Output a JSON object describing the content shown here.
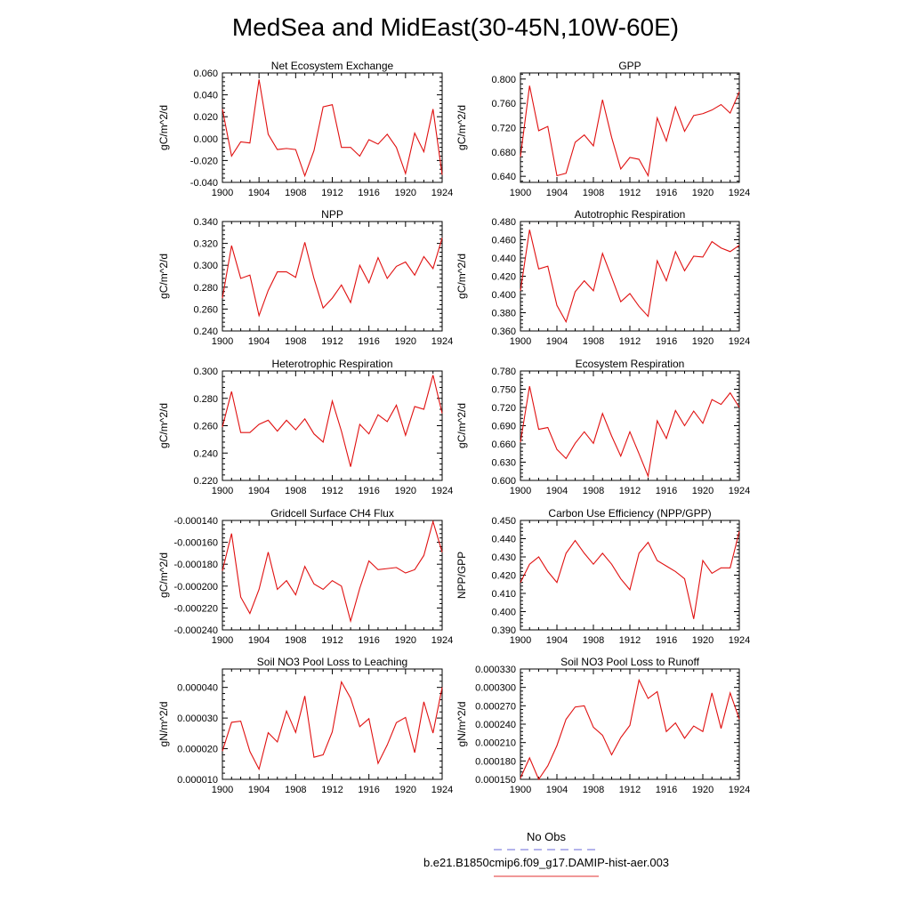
{
  "title": "MedSea and MidEast(30-45N,10W-60E)",
  "legend": {
    "entries": [
      {
        "label": "No Obs",
        "color": "#6a6ad8",
        "dash": true
      },
      {
        "label": "b.e21.B1850cmip6.f09_g17.DAMIP-hist-aer.003",
        "color": "#e03030",
        "dash": false
      }
    ]
  },
  "chart_data": [
    {
      "type": "line",
      "title": "Net Ecosystem Exchange",
      "ylabel": "gC/m^2/d",
      "xlim": [
        1900,
        1924
      ],
      "x_ticks": [
        1900,
        1904,
        1908,
        1912,
        1916,
        1920,
        1924
      ],
      "ylim": [
        -0.04,
        0.06
      ],
      "y_ticks": [
        -0.04,
        -0.02,
        0.0,
        0.02,
        0.04,
        0.06
      ],
      "y_tick_labels": [
        "-0.040",
        "-0.020",
        "0.000",
        "0.020",
        "0.040",
        "0.060"
      ],
      "color": "#e01010",
      "x": [
        1900,
        1901,
        1902,
        1903,
        1904,
        1905,
        1906,
        1907,
        1908,
        1909,
        1910,
        1911,
        1912,
        1913,
        1914,
        1915,
        1916,
        1917,
        1918,
        1919,
        1920,
        1921,
        1922,
        1923,
        1924
      ],
      "values": [
        0.027,
        -0.016,
        -0.003,
        -0.004,
        0.054,
        0.004,
        -0.01,
        -0.009,
        -0.01,
        -0.034,
        -0.011,
        0.029,
        0.031,
        -0.008,
        -0.008,
        -0.016,
        -0.001,
        -0.005,
        0.004,
        -0.008,
        -0.032,
        0.005,
        -0.012,
        0.027,
        -0.033
      ]
    },
    {
      "type": "line",
      "title": "GPP",
      "ylabel": "gC/m^2/d",
      "xlim": [
        1900,
        1924
      ],
      "x_ticks": [
        1900,
        1904,
        1908,
        1912,
        1916,
        1920,
        1924
      ],
      "ylim": [
        0.63,
        0.81
      ],
      "y_ticks": [
        0.64,
        0.68,
        0.72,
        0.76,
        0.8
      ],
      "y_tick_labels": [
        "0.640",
        "0.680",
        "0.720",
        "0.760",
        "0.800"
      ],
      "color": "#e01010",
      "x": [
        1900,
        1901,
        1902,
        1903,
        1904,
        1905,
        1906,
        1907,
        1908,
        1909,
        1910,
        1911,
        1912,
        1913,
        1914,
        1915,
        1916,
        1917,
        1918,
        1919,
        1920,
        1921,
        1922,
        1923,
        1924
      ],
      "values": [
        0.672,
        0.789,
        0.715,
        0.722,
        0.641,
        0.645,
        0.696,
        0.708,
        0.69,
        0.766,
        0.704,
        0.652,
        0.671,
        0.668,
        0.641,
        0.736,
        0.698,
        0.754,
        0.714,
        0.74,
        0.743,
        0.749,
        0.758,
        0.744,
        0.779
      ]
    },
    {
      "type": "line",
      "title": "NPP",
      "ylabel": "gC/m^2/d",
      "xlim": [
        1900,
        1924
      ],
      "x_ticks": [
        1900,
        1904,
        1908,
        1912,
        1916,
        1920,
        1924
      ],
      "ylim": [
        0.24,
        0.34
      ],
      "y_ticks": [
        0.24,
        0.26,
        0.28,
        0.3,
        0.32,
        0.34
      ],
      "y_tick_labels": [
        "0.240",
        "0.260",
        "0.280",
        "0.300",
        "0.320",
        "0.340"
      ],
      "color": "#e01010",
      "x": [
        1900,
        1901,
        1902,
        1903,
        1904,
        1905,
        1906,
        1907,
        1908,
        1909,
        1910,
        1911,
        1912,
        1913,
        1914,
        1915,
        1916,
        1917,
        1918,
        1919,
        1920,
        1921,
        1922,
        1923,
        1924
      ],
      "values": [
        0.27,
        0.318,
        0.288,
        0.291,
        0.254,
        0.277,
        0.294,
        0.294,
        0.289,
        0.321,
        0.288,
        0.261,
        0.27,
        0.282,
        0.266,
        0.3,
        0.284,
        0.307,
        0.288,
        0.299,
        0.303,
        0.291,
        0.308,
        0.297,
        0.325
      ]
    },
    {
      "type": "line",
      "title": "Autotrophic Respiration",
      "ylabel": "gC/m^2/d",
      "xlim": [
        1900,
        1924
      ],
      "x_ticks": [
        1900,
        1904,
        1908,
        1912,
        1916,
        1920,
        1924
      ],
      "ylim": [
        0.36,
        0.48
      ],
      "y_ticks": [
        0.36,
        0.38,
        0.4,
        0.42,
        0.44,
        0.46,
        0.48
      ],
      "y_tick_labels": [
        "0.360",
        "0.380",
        "0.400",
        "0.420",
        "0.440",
        "0.460",
        "0.480"
      ],
      "color": "#e01010",
      "x": [
        1900,
        1901,
        1902,
        1903,
        1904,
        1905,
        1906,
        1907,
        1908,
        1909,
        1910,
        1911,
        1912,
        1913,
        1914,
        1915,
        1916,
        1917,
        1918,
        1919,
        1920,
        1921,
        1922,
        1923,
        1924
      ],
      "values": [
        0.404,
        0.471,
        0.428,
        0.431,
        0.388,
        0.37,
        0.403,
        0.415,
        0.404,
        0.445,
        0.419,
        0.392,
        0.401,
        0.387,
        0.376,
        0.437,
        0.415,
        0.447,
        0.426,
        0.442,
        0.441,
        0.458,
        0.451,
        0.447,
        0.454
      ]
    },
    {
      "type": "line",
      "title": "Heterotrophic Respiration",
      "ylabel": "gC/m^2/d",
      "xlim": [
        1900,
        1924
      ],
      "x_ticks": [
        1900,
        1904,
        1908,
        1912,
        1916,
        1920,
        1924
      ],
      "ylim": [
        0.22,
        0.3
      ],
      "y_ticks": [
        0.22,
        0.24,
        0.26,
        0.28,
        0.3
      ],
      "y_tick_labels": [
        "0.220",
        "0.240",
        "0.260",
        "0.280",
        "0.300"
      ],
      "color": "#e01010",
      "x": [
        1900,
        1901,
        1902,
        1903,
        1904,
        1905,
        1906,
        1907,
        1908,
        1909,
        1910,
        1911,
        1912,
        1913,
        1914,
        1915,
        1916,
        1917,
        1918,
        1919,
        1920,
        1921,
        1922,
        1923,
        1924
      ],
      "values": [
        0.259,
        0.285,
        0.255,
        0.255,
        0.261,
        0.264,
        0.256,
        0.264,
        0.257,
        0.265,
        0.254,
        0.248,
        0.278,
        0.256,
        0.23,
        0.261,
        0.254,
        0.268,
        0.263,
        0.275,
        0.253,
        0.274,
        0.272,
        0.297,
        0.269
      ]
    },
    {
      "type": "line",
      "title": "Ecosystem Respiration",
      "ylabel": "gC/m^2/d",
      "xlim": [
        1900,
        1924
      ],
      "x_ticks": [
        1900,
        1904,
        1908,
        1912,
        1916,
        1920,
        1924
      ],
      "ylim": [
        0.6,
        0.78
      ],
      "y_ticks": [
        0.6,
        0.63,
        0.66,
        0.69,
        0.72,
        0.75,
        0.78
      ],
      "y_tick_labels": [
        "0.600",
        "0.630",
        "0.660",
        "0.690",
        "0.720",
        "0.750",
        "0.780"
      ],
      "color": "#e01010",
      "x": [
        1900,
        1901,
        1902,
        1903,
        1904,
        1905,
        1906,
        1907,
        1908,
        1909,
        1910,
        1911,
        1912,
        1913,
        1914,
        1915,
        1916,
        1917,
        1918,
        1919,
        1920,
        1921,
        1922,
        1923,
        1924
      ],
      "values": [
        0.663,
        0.755,
        0.684,
        0.687,
        0.651,
        0.636,
        0.661,
        0.68,
        0.661,
        0.71,
        0.673,
        0.64,
        0.68,
        0.644,
        0.607,
        0.698,
        0.669,
        0.715,
        0.69,
        0.714,
        0.694,
        0.733,
        0.725,
        0.744,
        0.72
      ]
    },
    {
      "type": "line",
      "title": "Gridcell Surface CH4 Flux",
      "ylabel": "gC/m^2/d",
      "xlim": [
        1900,
        1924
      ],
      "x_ticks": [
        1900,
        1904,
        1908,
        1912,
        1916,
        1920,
        1924
      ],
      "ylim": [
        -0.00024,
        -0.00014
      ],
      "y_ticks": [
        -0.00024,
        -0.00022,
        -0.0002,
        -0.00018,
        -0.00016,
        -0.00014
      ],
      "y_tick_labels": [
        "-0.000240",
        "-0.000220",
        "-0.000200",
        "-0.000180",
        "-0.000160",
        "-0.000140"
      ],
      "color": "#e01010",
      "x": [
        1900,
        1901,
        1902,
        1903,
        1904,
        1905,
        1906,
        1907,
        1908,
        1909,
        1910,
        1911,
        1912,
        1913,
        1914,
        1915,
        1916,
        1917,
        1918,
        1919,
        1920,
        1921,
        1922,
        1923,
        1924
      ],
      "values": [
        -0.000186,
        -0.000152,
        -0.00021,
        -0.000225,
        -0.000203,
        -0.000169,
        -0.000203,
        -0.000195,
        -0.000208,
        -0.000182,
        -0.000198,
        -0.000203,
        -0.000195,
        -0.0002,
        -0.000232,
        -0.000202,
        -0.000177,
        -0.000185,
        -0.000184,
        -0.000183,
        -0.000188,
        -0.000185,
        -0.000172,
        -0.000141,
        -0.000169
      ]
    },
    {
      "type": "line",
      "title": "Carbon Use Efficiency (NPP/GPP)",
      "ylabel": "NPP/GPP",
      "xlim": [
        1900,
        1924
      ],
      "x_ticks": [
        1900,
        1904,
        1908,
        1912,
        1916,
        1920,
        1924
      ],
      "ylim": [
        0.39,
        0.45
      ],
      "y_ticks": [
        0.39,
        0.4,
        0.41,
        0.42,
        0.43,
        0.44,
        0.45
      ],
      "y_tick_labels": [
        "0.390",
        "0.400",
        "0.410",
        "0.420",
        "0.430",
        "0.440",
        "0.450"
      ],
      "color": "#e01010",
      "x": [
        1900,
        1901,
        1902,
        1903,
        1904,
        1905,
        1906,
        1907,
        1908,
        1909,
        1910,
        1911,
        1912,
        1913,
        1914,
        1915,
        1916,
        1917,
        1918,
        1919,
        1920,
        1921,
        1922,
        1923,
        1924
      ],
      "values": [
        0.416,
        0.426,
        0.43,
        0.422,
        0.416,
        0.432,
        0.439,
        0.432,
        0.426,
        0.432,
        0.426,
        0.418,
        0.412,
        0.432,
        0.438,
        0.428,
        0.425,
        0.422,
        0.418,
        0.396,
        0.428,
        0.421,
        0.424,
        0.424,
        0.444
      ]
    },
    {
      "type": "line",
      "title": "Soil NO3 Pool Loss to Leaching",
      "ylabel": "gN/m^2/d",
      "xlim": [
        1900,
        1924
      ],
      "x_ticks": [
        1900,
        1904,
        1908,
        1912,
        1916,
        1920,
        1924
      ],
      "ylim": [
        1e-05,
        4.6e-05
      ],
      "y_ticks": [
        1e-05,
        2e-05,
        3e-05,
        4e-05
      ],
      "y_tick_labels": [
        "0.000010",
        "0.000020",
        "0.000030",
        "0.000040"
      ],
      "color": "#e01010",
      "x": [
        1900,
        1901,
        1902,
        1903,
        1904,
        1905,
        1906,
        1907,
        1908,
        1909,
        1910,
        1911,
        1912,
        1913,
        1914,
        1915,
        1916,
        1917,
        1918,
        1919,
        1920,
        1921,
        1922,
        1923,
        1924
      ],
      "values": [
        1.92e-05,
        2.86e-05,
        2.9e-05,
        1.91e-05,
        1.33e-05,
        2.52e-05,
        2.22e-05,
        3.23e-05,
        2.53e-05,
        3.72e-05,
        1.72e-05,
        1.8e-05,
        2.55e-05,
        4.18e-05,
        3.65e-05,
        2.72e-05,
        2.98e-05,
        1.52e-05,
        2.12e-05,
        2.85e-05,
        3.02e-05,
        1.87e-05,
        3.53e-05,
        2.51e-05,
        4e-05
      ]
    },
    {
      "type": "line",
      "title": "Soil NO3 Pool Loss to Runoff",
      "ylabel": "gN/m^2/d",
      "xlim": [
        1900,
        1924
      ],
      "x_ticks": [
        1900,
        1904,
        1908,
        1912,
        1916,
        1920,
        1924
      ],
      "ylim": [
        0.00015,
        0.00033
      ],
      "y_ticks": [
        0.00015,
        0.00018,
        0.00021,
        0.00024,
        0.00027,
        0.0003,
        0.00033
      ],
      "y_tick_labels": [
        "0.000150",
        "0.000180",
        "0.000210",
        "0.000240",
        "0.000270",
        "0.000300",
        "0.000330"
      ],
      "color": "#e01010",
      "x": [
        1900,
        1901,
        1902,
        1903,
        1904,
        1905,
        1906,
        1907,
        1908,
        1909,
        1910,
        1911,
        1912,
        1913,
        1914,
        1915,
        1916,
        1917,
        1918,
        1919,
        1920,
        1921,
        1922,
        1923,
        1924
      ],
      "values": [
        0.000152,
        0.000185,
        0.00015,
        0.000172,
        0.000205,
        0.000248,
        0.000268,
        0.00027,
        0.000235,
        0.000222,
        0.00019,
        0.000218,
        0.000238,
        0.000312,
        0.000282,
        0.000293,
        0.000228,
        0.000242,
        0.000217,
        0.000237,
        0.000228,
        0.000291,
        0.000233,
        0.000291,
        0.000248
      ]
    }
  ]
}
